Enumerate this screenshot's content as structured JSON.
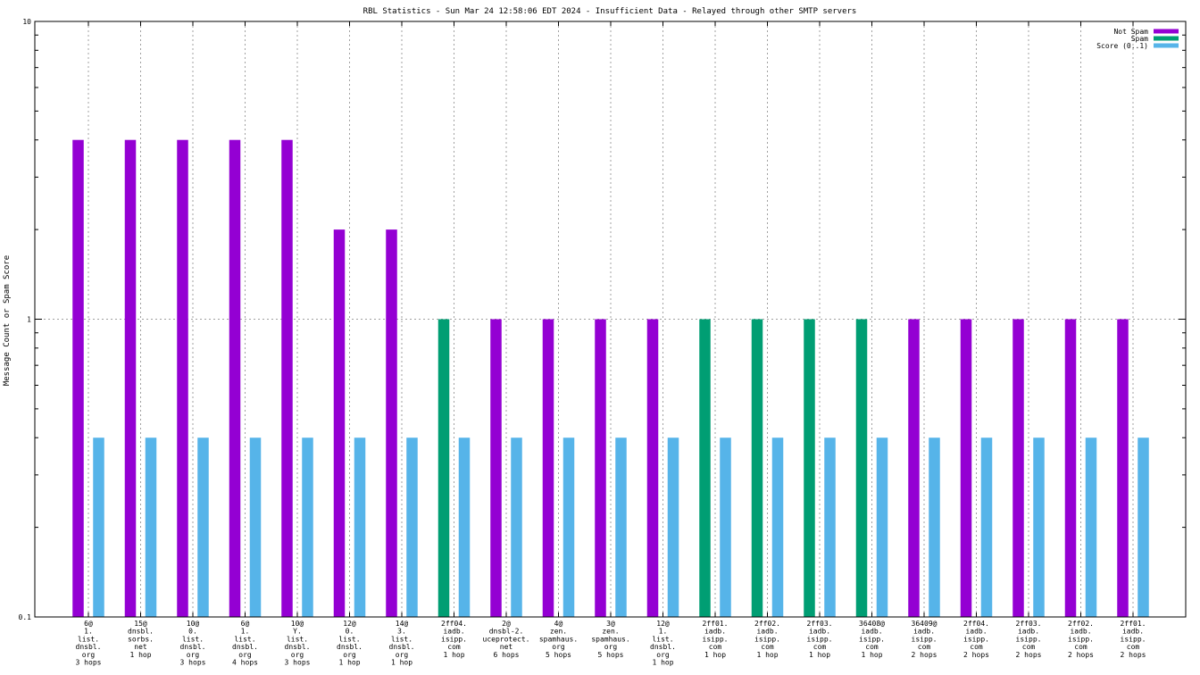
{
  "chart_data": {
    "type": "bar",
    "title": "RBL Statistics - Sun Mar 24 12:58:06 EDT 2024 - Insufficient Data - Relayed through other SMTP servers",
    "ylabel": "Message Count or Spam Score",
    "xlabel": "",
    "y_scale": "log",
    "ylim": [
      0.1,
      10
    ],
    "y_ticks": [
      {
        "value": 0.1,
        "label": "0.1"
      },
      {
        "value": 1,
        "label": "1"
      },
      {
        "value": 10,
        "label": "10"
      }
    ],
    "grid": true,
    "legend_position": "top-right",
    "categories": [
      [
        "6@",
        "1.",
        "list.",
        "dnsbl.",
        "org",
        "3 hops"
      ],
      [
        "15@",
        "dnsbl.",
        "sorbs.",
        "net",
        "1 hop"
      ],
      [
        "10@",
        "0.",
        "list.",
        "dnsbl.",
        "org",
        "3 hops"
      ],
      [
        "6@",
        "1.",
        "list.",
        "dnsbl.",
        "org",
        "4 hops"
      ],
      [
        "10@",
        "Y.",
        "list.",
        "dnsbl.",
        "org",
        "3 hops"
      ],
      [
        "12@",
        "0.",
        "list.",
        "dnsbl.",
        "org",
        "1 hop"
      ],
      [
        "14@",
        "3.",
        "list.",
        "dnsbl.",
        "org",
        "1 hop"
      ],
      [
        "2ff04.",
        "iadb.",
        "isipp.",
        "com",
        "1 hop"
      ],
      [
        "2@",
        "dnsbl-2.",
        "uceprotect.",
        "net",
        "6 hops"
      ],
      [
        "4@",
        "zen.",
        "spamhaus.",
        "org",
        "5 hops"
      ],
      [
        "3@",
        "zen.",
        "spamhaus.",
        "org",
        "5 hops"
      ],
      [
        "12@",
        "1.",
        "list.",
        "dnsbl.",
        "org",
        "1 hop"
      ],
      [
        "2ff01.",
        "iadb.",
        "isipp.",
        "com",
        "1 hop"
      ],
      [
        "2ff02.",
        "iadb.",
        "isipp.",
        "com",
        "1 hop"
      ],
      [
        "2ff03.",
        "iadb.",
        "isipp.",
        "com",
        "1 hop"
      ],
      [
        "36408@",
        "iadb.",
        "isipp.",
        "com",
        "1 hop"
      ],
      [
        "36409@",
        "iadb.",
        "isipp.",
        "com",
        "2 hops"
      ],
      [
        "2ff04.",
        "iadb.",
        "isipp.",
        "com",
        "2 hops"
      ],
      [
        "2ff03.",
        "iadb.",
        "isipp.",
        "com",
        "2 hops"
      ],
      [
        "2ff02.",
        "iadb.",
        "isipp.",
        "com",
        "2 hops"
      ],
      [
        "2ff01.",
        "iadb.",
        "isipp.",
        "com",
        "2 hops"
      ]
    ],
    "series": [
      {
        "name": "Not Spam",
        "color": "#9400d3",
        "values": [
          4,
          4,
          4,
          4,
          4,
          2,
          2,
          0,
          1,
          1,
          1,
          1,
          0,
          0,
          0,
          0,
          1,
          1,
          1,
          1,
          1
        ]
      },
      {
        "name": "Spam",
        "color": "#009e73",
        "values": [
          0,
          0,
          0,
          0,
          0,
          0,
          0,
          1,
          0,
          0,
          0,
          0,
          1,
          1,
          1,
          1,
          0,
          0,
          0,
          0,
          0
        ]
      },
      {
        "name": "Score (0..1)",
        "color": "#56b4e9",
        "values": [
          0.4,
          0.4,
          0.4,
          0.4,
          0.4,
          0.4,
          0.4,
          0.4,
          0.4,
          0.4,
          0.4,
          0.4,
          0.4,
          0.4,
          0.4,
          0.4,
          0.4,
          0.4,
          0.4,
          0.4,
          0.4
        ]
      }
    ]
  }
}
